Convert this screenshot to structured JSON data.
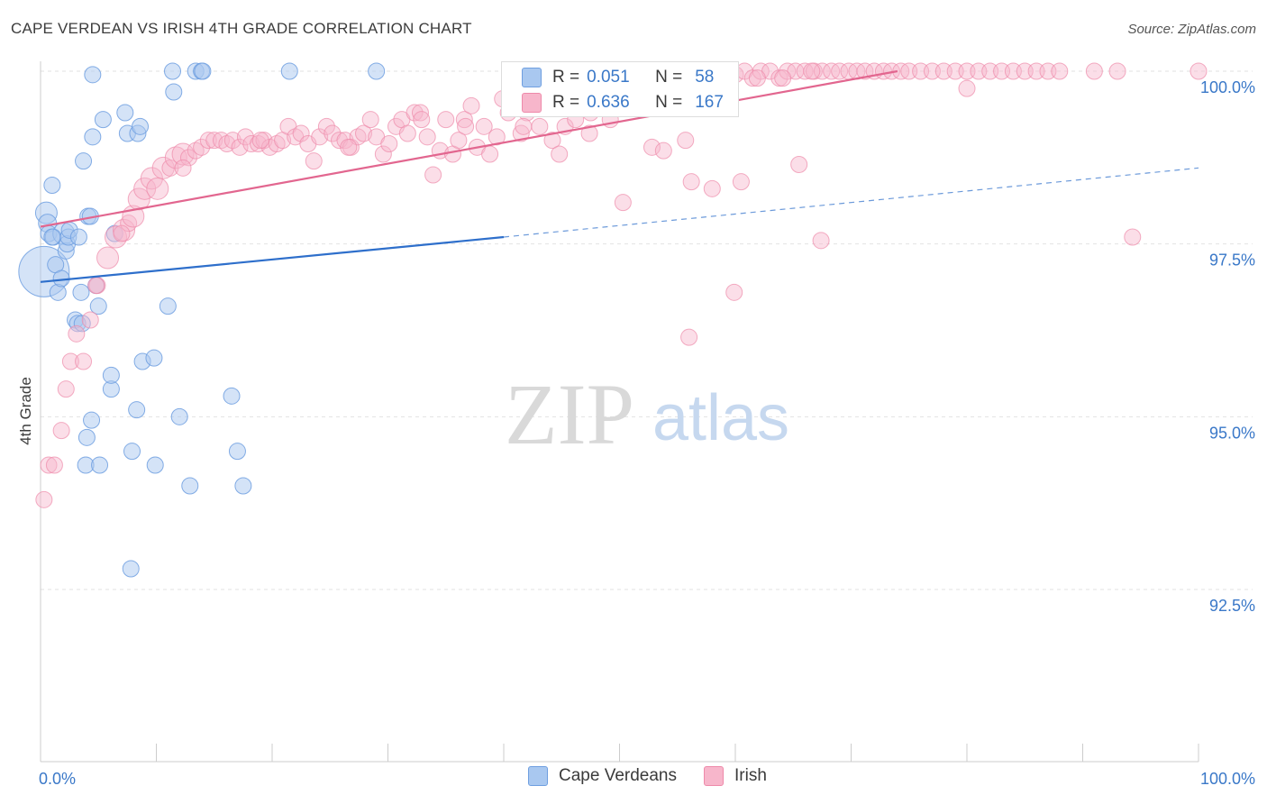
{
  "header": {
    "title": "CAPE VERDEAN VS IRISH 4TH GRADE CORRELATION CHART",
    "source": "Source: ZipAtlas.com"
  },
  "watermark": {
    "zip": "ZIP",
    "atlas": "atlas"
  },
  "legend": {
    "rows": [
      {
        "r_label": "R =",
        "r_value": "0.051",
        "n_label": "N =",
        "n_value": "58",
        "color": "#a9c8f0"
      },
      {
        "r_label": "R =",
        "r_value": "0.636",
        "n_label": "N =",
        "n_value": "167",
        "color": "#f7b6cb"
      }
    ]
  },
  "bottom_legend": [
    {
      "label": "Cape Verdeans",
      "color": "#a9c8f0"
    },
    {
      "label": "Irish",
      "color": "#f7b6cb"
    }
  ],
  "colors": {
    "blue_fill": "#a9c8f0",
    "blue_stroke": "#6f9fe0",
    "blue_line": "#2e6fcb",
    "pink_fill": "#f7b6cb",
    "pink_stroke": "#ee8aaa",
    "pink_line": "#e2668f",
    "tick_label": "#3a78c8",
    "grid": "#e2e2e2"
  },
  "chart_data": {
    "type": "scatter",
    "title": "CAPE VERDEAN VS IRISH 4TH GRADE CORRELATION CHART",
    "xlabel": "",
    "ylabel": "4th Grade",
    "xlim": [
      0,
      100
    ],
    "ylim": [
      90.3,
      100.2
    ],
    "x_tick_labels": [
      "0.0%",
      "100.0%"
    ],
    "y_ticks": [
      100.0,
      97.5,
      95.0,
      92.5
    ],
    "y_tick_labels": [
      "100.0%",
      "97.5%",
      "95.0%",
      "92.5%"
    ],
    "grid": "horizontal dashed",
    "legend_position": "top-center",
    "series": [
      {
        "name": "Cape Verdeans",
        "R": 0.051,
        "N": 58,
        "trend": {
          "x0": 0,
          "y0": 96.95,
          "x1": 40,
          "y1": 97.6,
          "extend_to_x": 100,
          "extend_to_y": 98.6
        },
        "points": [
          [
            0.3,
            97.1,
            28
          ],
          [
            0.5,
            97.95,
            12
          ],
          [
            0.6,
            97.8,
            10
          ],
          [
            0.7,
            97.65,
            9
          ],
          [
            1.0,
            98.35,
            9
          ],
          [
            1.1,
            97.6,
            9
          ],
          [
            1.3,
            97.2,
            9
          ],
          [
            1.5,
            96.8,
            9
          ],
          [
            1.8,
            97.0,
            9
          ],
          [
            2.0,
            97.65,
            12
          ],
          [
            2.2,
            97.4,
            9
          ],
          [
            2.3,
            97.5,
            9
          ],
          [
            2.4,
            97.6,
            9
          ],
          [
            2.5,
            97.7,
            9
          ],
          [
            3.0,
            96.4,
            9
          ],
          [
            3.2,
            96.35,
            9
          ],
          [
            3.3,
            97.6,
            9
          ],
          [
            3.5,
            96.8,
            9
          ],
          [
            3.6,
            96.35,
            9
          ],
          [
            3.7,
            98.7,
            9
          ],
          [
            3.9,
            94.3,
            9
          ],
          [
            4.0,
            94.7,
            9
          ],
          [
            4.1,
            97.9,
            9
          ],
          [
            4.3,
            97.9,
            9
          ],
          [
            4.4,
            94.95,
            9
          ],
          [
            4.5,
            99.05,
            9
          ],
          [
            4.5,
            99.95,
            9
          ],
          [
            4.8,
            96.9,
            9
          ],
          [
            5.0,
            96.6,
            9
          ],
          [
            5.1,
            94.3,
            9
          ],
          [
            5.4,
            99.3,
            9
          ],
          [
            6.1,
            95.4,
            9
          ],
          [
            6.1,
            95.6,
            9
          ],
          [
            6.4,
            97.65,
            9
          ],
          [
            7.3,
            99.4,
            9
          ],
          [
            7.5,
            99.1,
            9
          ],
          [
            7.9,
            94.5,
            9
          ],
          [
            8.3,
            95.1,
            9
          ],
          [
            8.4,
            99.1,
            9
          ],
          [
            8.6,
            99.2,
            9
          ],
          [
            8.8,
            95.8,
            9
          ],
          [
            9.8,
            95.85,
            9
          ],
          [
            9.9,
            94.3,
            9
          ],
          [
            11.0,
            96.6,
            9
          ],
          [
            11.4,
            100.0,
            9
          ],
          [
            11.5,
            99.7,
            9
          ],
          [
            12.0,
            95.0,
            9
          ],
          [
            12.9,
            94.0,
            9
          ],
          [
            13.4,
            100.0,
            9
          ],
          [
            13.9,
            100.0,
            9
          ],
          [
            14.0,
            100.0,
            9
          ],
          [
            16.5,
            95.3,
            9
          ],
          [
            17.0,
            94.5,
            9
          ],
          [
            17.5,
            94.0,
            9
          ],
          [
            21.5,
            100.0,
            9
          ],
          [
            29.0,
            100.0,
            9
          ],
          [
            7.8,
            92.8,
            9
          ],
          [
            1.0,
            97.6,
            9
          ]
        ]
      },
      {
        "name": "Irish",
        "R": 0.636,
        "N": 167,
        "trend": {
          "x0": 0,
          "y0": 97.75,
          "x1": 74,
          "y1": 100.0
        },
        "points": [
          [
            0.3,
            93.8,
            9
          ],
          [
            0.7,
            94.3,
            9
          ],
          [
            1.2,
            94.3,
            9
          ],
          [
            1.8,
            94.8,
            9
          ],
          [
            2.2,
            95.4,
            9
          ],
          [
            2.6,
            95.8,
            9
          ],
          [
            3.1,
            96.2,
            9
          ],
          [
            3.7,
            95.8,
            9
          ],
          [
            4.3,
            96.4,
            9
          ],
          [
            4.9,
            96.9,
            9
          ],
          [
            5.8,
            97.3,
            12
          ],
          [
            6.5,
            97.6,
            12
          ],
          [
            7.2,
            97.7,
            12
          ],
          [
            7.6,
            97.8,
            9
          ],
          [
            8.0,
            97.9,
            12
          ],
          [
            8.5,
            98.15,
            12
          ],
          [
            9.0,
            98.3,
            12
          ],
          [
            9.6,
            98.45,
            12
          ],
          [
            10.1,
            98.3,
            12
          ],
          [
            10.6,
            98.6,
            12
          ],
          [
            11.2,
            98.6,
            9
          ],
          [
            11.7,
            98.75,
            12
          ],
          [
            12.3,
            98.8,
            12
          ],
          [
            12.8,
            98.75,
            9
          ],
          [
            13.4,
            98.85,
            9
          ],
          [
            13.9,
            98.9,
            9
          ],
          [
            14.5,
            99.0,
            9
          ],
          [
            15.0,
            99.0,
            9
          ],
          [
            15.6,
            99.0,
            9
          ],
          [
            16.1,
            98.95,
            9
          ],
          [
            16.6,
            99.0,
            9
          ],
          [
            17.2,
            98.9,
            9
          ],
          [
            17.7,
            99.05,
            9
          ],
          [
            18.2,
            98.95,
            9
          ],
          [
            18.8,
            98.95,
            9
          ],
          [
            19.3,
            99.0,
            9
          ],
          [
            19.8,
            98.9,
            9
          ],
          [
            20.4,
            98.95,
            9
          ],
          [
            20.9,
            99.0,
            9
          ],
          [
            21.4,
            99.2,
            9
          ],
          [
            22.0,
            99.05,
            9
          ],
          [
            22.5,
            99.1,
            9
          ],
          [
            23.1,
            98.95,
            9
          ],
          [
            23.6,
            98.7,
            9
          ],
          [
            24.1,
            99.05,
            9
          ],
          [
            24.7,
            99.2,
            9
          ],
          [
            25.2,
            99.1,
            9
          ],
          [
            25.8,
            99.0,
            9
          ],
          [
            26.3,
            99.0,
            9
          ],
          [
            26.8,
            98.9,
            9
          ],
          [
            27.4,
            99.05,
            9
          ],
          [
            27.9,
            99.1,
            9
          ],
          [
            28.5,
            99.3,
            9
          ],
          [
            29.0,
            99.05,
            9
          ],
          [
            29.6,
            98.8,
            9
          ],
          [
            30.1,
            98.95,
            9
          ],
          [
            30.7,
            99.2,
            9
          ],
          [
            31.2,
            99.3,
            9
          ],
          [
            31.7,
            99.1,
            9
          ],
          [
            32.3,
            99.4,
            9
          ],
          [
            32.8,
            99.4,
            9
          ],
          [
            33.4,
            99.05,
            9
          ],
          [
            33.9,
            98.5,
            9
          ],
          [
            34.5,
            98.85,
            9
          ],
          [
            35.0,
            99.3,
            9
          ],
          [
            35.6,
            98.8,
            9
          ],
          [
            36.1,
            99.0,
            9
          ],
          [
            36.6,
            99.3,
            9
          ],
          [
            37.2,
            99.5,
            9
          ],
          [
            37.7,
            98.9,
            9
          ],
          [
            38.3,
            99.2,
            9
          ],
          [
            38.8,
            98.8,
            9
          ],
          [
            39.4,
            99.05,
            9
          ],
          [
            39.9,
            99.6,
            9
          ],
          [
            40.4,
            99.4,
            9
          ],
          [
            41.0,
            99.7,
            9
          ],
          [
            41.5,
            99.1,
            9
          ],
          [
            42.0,
            99.4,
            9
          ],
          [
            42.6,
            99.8,
            9
          ],
          [
            43.1,
            99.2,
            9
          ],
          [
            43.7,
            99.6,
            9
          ],
          [
            44.2,
            99.0,
            9
          ],
          [
            44.8,
            98.8,
            9
          ],
          [
            45.3,
            99.2,
            9
          ],
          [
            45.8,
            99.5,
            9
          ],
          [
            46.4,
            99.9,
            9
          ],
          [
            47.0,
            99.6,
            9
          ],
          [
            47.5,
            99.4,
            9
          ],
          [
            48.1,
            99.75,
            9
          ],
          [
            48.6,
            99.9,
            9
          ],
          [
            49.2,
            99.3,
            9
          ],
          [
            49.8,
            100.0,
            9
          ],
          [
            50.3,
            99.6,
            9
          ],
          [
            50.9,
            100.0,
            9
          ],
          [
            51.6,
            99.9,
            9
          ],
          [
            52.4,
            99.8,
            9
          ],
          [
            53.2,
            100.0,
            9
          ],
          [
            54.0,
            99.9,
            9
          ],
          [
            54.8,
            99.85,
            9
          ],
          [
            55.5,
            100.0,
            9
          ],
          [
            56.2,
            99.9,
            9
          ],
          [
            57.0,
            100.0,
            9
          ],
          [
            57.8,
            99.9,
            9
          ],
          [
            58.5,
            100.0,
            9
          ],
          [
            59.3,
            100.0,
            9
          ],
          [
            60.0,
            99.95,
            9
          ],
          [
            60.8,
            100.0,
            9
          ],
          [
            61.5,
            99.9,
            9
          ],
          [
            62.2,
            100.0,
            9
          ],
          [
            63.0,
            100.0,
            9
          ],
          [
            63.8,
            99.9,
            9
          ],
          [
            64.5,
            100.0,
            9
          ],
          [
            65.2,
            100.0,
            9
          ],
          [
            66.0,
            100.0,
            9
          ],
          [
            66.8,
            100.0,
            9
          ],
          [
            67.5,
            100.0,
            9
          ],
          [
            68.3,
            100.0,
            9
          ],
          [
            69.0,
            100.0,
            9
          ],
          [
            69.8,
            100.0,
            9
          ],
          [
            70.5,
            100.0,
            9
          ],
          [
            71.2,
            100.0,
            9
          ],
          [
            72.0,
            100.0,
            9
          ],
          [
            72.8,
            100.0,
            9
          ],
          [
            73.5,
            100.0,
            9
          ],
          [
            74.3,
            100.0,
            9
          ],
          [
            75.0,
            100.0,
            9
          ],
          [
            76.0,
            100.0,
            9
          ],
          [
            77.0,
            100.0,
            9
          ],
          [
            78.0,
            100.0,
            9
          ],
          [
            79.0,
            100.0,
            9
          ],
          [
            80.0,
            100.0,
            9
          ],
          [
            81.0,
            100.0,
            9
          ],
          [
            82.0,
            100.0,
            9
          ],
          [
            83.0,
            100.0,
            9
          ],
          [
            84.0,
            100.0,
            9
          ],
          [
            85.0,
            100.0,
            9
          ],
          [
            86.0,
            100.0,
            9
          ],
          [
            87.0,
            100.0,
            9
          ],
          [
            88.0,
            100.0,
            9
          ],
          [
            91.0,
            100.0,
            9
          ],
          [
            93.0,
            100.0,
            9
          ],
          [
            100.0,
            100.0,
            9
          ],
          [
            32.9,
            99.3,
            9
          ],
          [
            41.7,
            99.2,
            9
          ],
          [
            47.4,
            99.1,
            9
          ],
          [
            50.3,
            98.1,
            9
          ],
          [
            52.8,
            98.9,
            9
          ],
          [
            53.8,
            98.85,
            9
          ],
          [
            56.2,
            98.4,
            9
          ],
          [
            55.7,
            99.0,
            9
          ],
          [
            58.0,
            98.3,
            9
          ],
          [
            60.5,
            98.4,
            9
          ],
          [
            59.9,
            96.8,
            9
          ],
          [
            56.0,
            96.15,
            9
          ],
          [
            65.5,
            98.65,
            9
          ],
          [
            67.4,
            97.55,
            9
          ],
          [
            80.0,
            99.75,
            9
          ],
          [
            94.3,
            97.6,
            9
          ],
          [
            4.8,
            96.9,
            9
          ],
          [
            7.0,
            97.65,
            9
          ],
          [
            12.3,
            98.6,
            9
          ],
          [
            19.0,
            99.0,
            9
          ],
          [
            26.6,
            98.9,
            9
          ],
          [
            36.7,
            99.2,
            9
          ],
          [
            42.8,
            99.5,
            9
          ],
          [
            44.9,
            99.6,
            9
          ],
          [
            46.2,
            99.3,
            9
          ],
          [
            51.0,
            99.5,
            9
          ],
          [
            53.9,
            99.9,
            9
          ],
          [
            57.4,
            99.8,
            9
          ],
          [
            61.9,
            99.9,
            9
          ],
          [
            64.1,
            99.9,
            9
          ],
          [
            66.6,
            100.0,
            9
          ]
        ]
      }
    ]
  }
}
